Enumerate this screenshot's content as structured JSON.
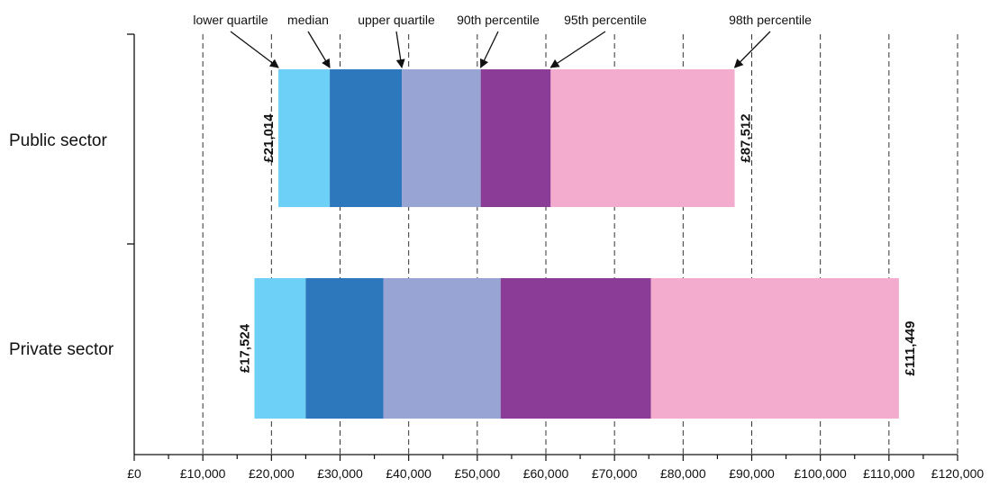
{
  "chart_data": {
    "type": "bar",
    "orientation": "horizontal",
    "stacked": true,
    "title": "",
    "xlabel": "",
    "ylabel": "",
    "xlim": [
      0,
      120000
    ],
    "x_ticks": [
      0,
      10000,
      20000,
      30000,
      40000,
      50000,
      60000,
      70000,
      80000,
      90000,
      100000,
      110000,
      120000
    ],
    "x_tick_labels": [
      "£0",
      "£10,000",
      "£20,000",
      "£30,000",
      "£40,000",
      "£50,000",
      "£60,000",
      "£70,000",
      "£80,000",
      "£90,000",
      "£100,000",
      "£110,000",
      "£120,000"
    ],
    "grid": "vertical dashed",
    "categories": [
      "Public sector",
      "Private sector"
    ],
    "percentile_names": [
      "lower quartile",
      "median",
      "upper quartile",
      "90th percentile",
      "95th percentile",
      "98th percentile"
    ],
    "rows": [
      {
        "category": "Public sector",
        "start": 21014,
        "boundaries": [
          28500,
          39000,
          50500,
          60700,
          87512
        ],
        "start_label": "£21,014",
        "end_label": "£87,512"
      },
      {
        "category": "Private sector",
        "start": 17524,
        "boundaries": [
          25000,
          36300,
          53400,
          75300,
          111449
        ],
        "start_label": "£17,524",
        "end_label": "£111,449"
      }
    ],
    "annotations": [
      {
        "text": "lower quartile",
        "value": 21014
      },
      {
        "text": "median",
        "value": 28500
      },
      {
        "text": "upper quartile",
        "value": 39000
      },
      {
        "text": "90th percentile",
        "value": 50500
      },
      {
        "text": "95th percentile",
        "value": 60700
      },
      {
        "text": "98th percentile",
        "value": 87512
      }
    ],
    "segment_colors": [
      "#6dd0f6",
      "#2d77bd",
      "#98a4d3",
      "#8a3c96",
      "#f3acce"
    ],
    "legend": "none"
  }
}
